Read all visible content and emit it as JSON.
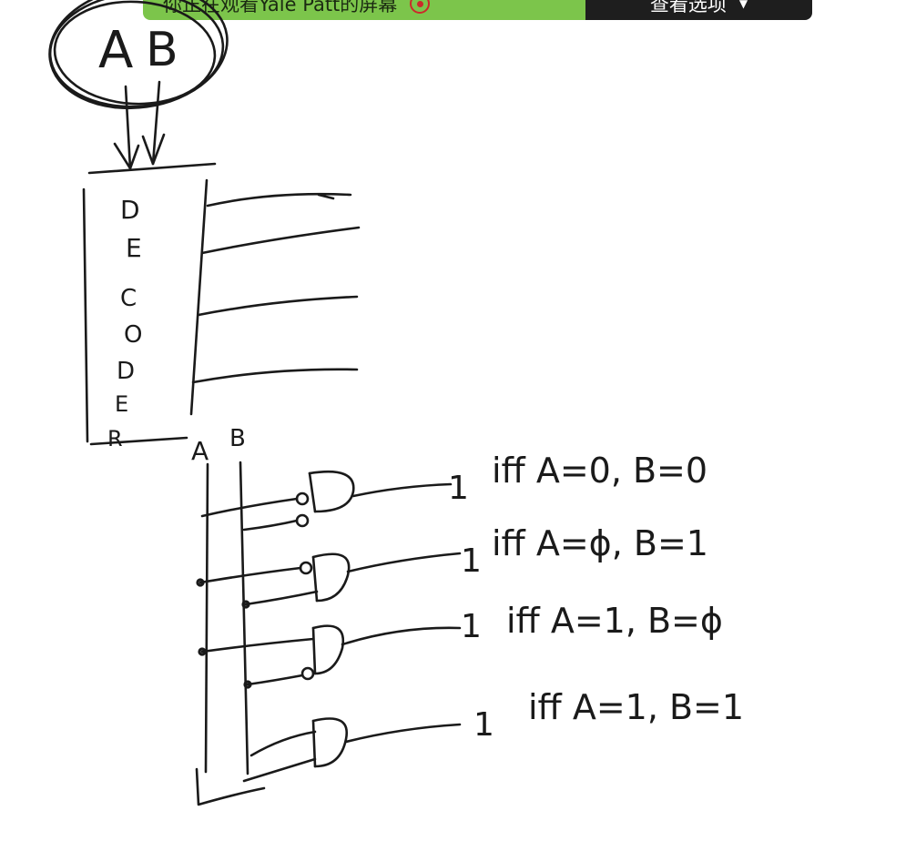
{
  "banner": {
    "sharing_text": "你正在观看Yale Patt的屏幕",
    "view_options_label": "查看选项",
    "accent_color": "#7cc54b"
  },
  "icons": {
    "stop_share": "stop-share-icon",
    "dropdown": "chevron-down-icon"
  },
  "whiteboard": {
    "input_labels": [
      "A",
      "B"
    ],
    "decoder_glyphs": [
      "D",
      "E",
      "C",
      "O",
      "D",
      "E",
      "R"
    ],
    "input_bus_labels": [
      "A",
      "B"
    ],
    "conditions": [
      {
        "output": "1",
        "text": "iff A=0, B=0"
      },
      {
        "output": "1",
        "text": "iff A=ϕ, B=1"
      },
      {
        "output": "1",
        "text": "iff A=1, B=ϕ"
      },
      {
        "output": "1",
        "text": "iff A=1, B=1"
      }
    ]
  }
}
